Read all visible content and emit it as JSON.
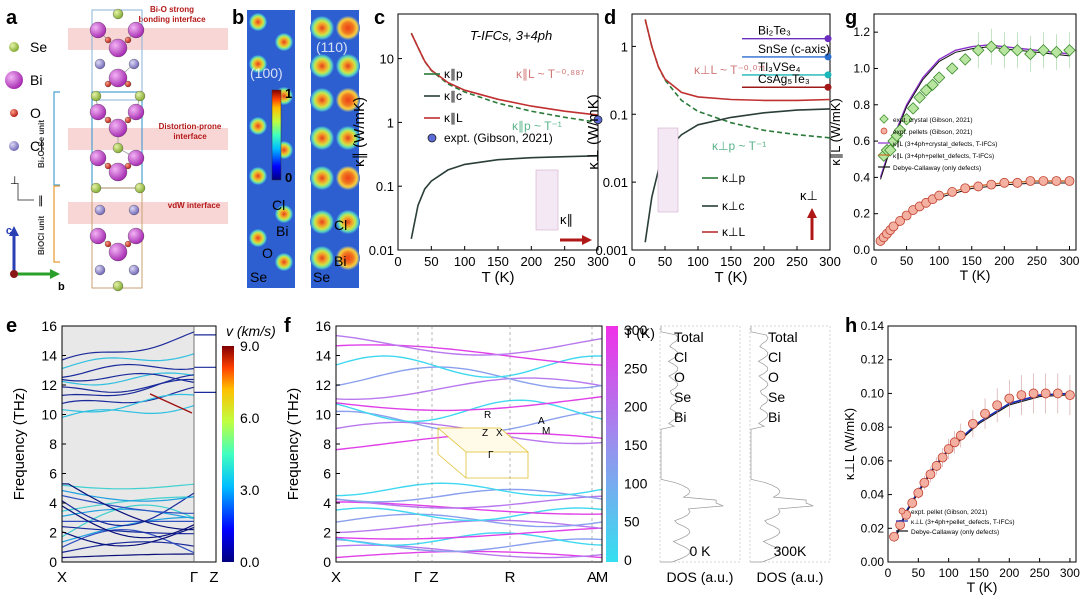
{
  "panel_letters": [
    "a",
    "b",
    "c",
    "d",
    "g",
    "e",
    "f",
    "h"
  ],
  "panel_a": {
    "legend": [
      "Se",
      "Bi",
      "O",
      "Cl"
    ],
    "annotations": [
      "Bi-O strong bonding interface",
      "Distortion-prone interface",
      "vdW interface"
    ],
    "units": [
      "Bi₂O₂Se unit",
      "BiOCl unit"
    ],
    "axes": {
      "perp": "⊥",
      "par": "∥",
      "c": "c",
      "b": "b"
    },
    "colors": {
      "Se": "#a5c94a",
      "Bi": "#c048c8",
      "O": "#d23a2a",
      "Cl": "#8f86c8"
    }
  },
  "panel_b": {
    "map_labels": [
      "(100)",
      "(110)"
    ],
    "colorbar": {
      "max": "1",
      "min": "0"
    },
    "site_labels_left": [
      "Cl",
      "Bi",
      "O",
      "Se"
    ],
    "site_labels_right": [
      "Cl",
      "Bi",
      "Se"
    ]
  },
  "chart_data": [
    {
      "panel": "c",
      "type": "line",
      "scale": "log-y",
      "title": "T-IFCs, 3+4ph",
      "xlabel": "T (K)",
      "ylabel": "κ∥ (W/mK)",
      "xlim": [
        0,
        300
      ],
      "ylim": [
        0.01,
        50
      ],
      "xticks": [
        "0",
        "50",
        "100",
        "150",
        "200",
        "250",
        "300"
      ],
      "yticks": [
        "0.01",
        "0.1",
        "1",
        "10"
      ],
      "legend": [
        "κ∥p",
        "κ∥c",
        "κ∥L",
        "expt. (Gibson, 2021)"
      ],
      "annotations": [
        "κ∥L ~ T⁻⁰·⁸⁸⁷",
        "κ∥p ~ T⁻¹",
        "κ∥"
      ],
      "series": [
        {
          "name": "κ∥p",
          "x": [
            20,
            30,
            40,
            50,
            75,
            100,
            150,
            200,
            250,
            300
          ],
          "y": [
            25,
            15,
            9,
            6.5,
            4,
            3.0,
            2.0,
            1.5,
            1.2,
            1.0
          ]
        },
        {
          "name": "κ∥c",
          "x": [
            20,
            30,
            40,
            50,
            75,
            100,
            150,
            200,
            250,
            300
          ],
          "y": [
            0.015,
            0.05,
            0.09,
            0.12,
            0.18,
            0.22,
            0.26,
            0.28,
            0.29,
            0.3
          ]
        },
        {
          "name": "κ∥L",
          "x": [
            20,
            30,
            40,
            50,
            75,
            100,
            150,
            200,
            250,
            300
          ],
          "y": [
            25,
            15,
            9.1,
            6.6,
            4.2,
            3.2,
            2.3,
            1.8,
            1.5,
            1.3
          ]
        }
      ],
      "expt": {
        "x": 300,
        "y": 1.1
      }
    },
    {
      "panel": "d",
      "type": "line",
      "scale": "log-y",
      "xlabel": "T (K)",
      "ylabel": "κ⊥ (W/mK)",
      "xlim": [
        0,
        300
      ],
      "ylim": [
        0.001,
        3
      ],
      "xticks": [
        "0",
        "50",
        "100",
        "150",
        "200",
        "250",
        "300"
      ],
      "yticks": [
        "0.001",
        "0.01",
        "0.1",
        "1"
      ],
      "legend": [
        "κ⊥p",
        "κ⊥c",
        "κ⊥L"
      ],
      "annotations": [
        "κ⊥L ~ T⁻⁰·⁰⁷¹",
        "κ⊥p ~ T⁻¹",
        "κ⊥"
      ],
      "references": [
        {
          "label": "Bi₂Te₃",
          "y": 1.3,
          "color": "#6a2dbf"
        },
        {
          "label": "SnSe (c-axis)",
          "y": 0.7,
          "color": "#2a6dcf"
        },
        {
          "label": "Tl₃VSe₄",
          "y": 0.38,
          "color": "#18b8b8"
        },
        {
          "label": "CsAg₅Te₃",
          "y": 0.25,
          "color": "#a01818"
        }
      ],
      "series": [
        {
          "name": "κ⊥p",
          "x": [
            20,
            30,
            40,
            50,
            75,
            100,
            150,
            200,
            250,
            300
          ],
          "y": [
            2.5,
            1.0,
            0.5,
            0.32,
            0.16,
            0.11,
            0.075,
            0.058,
            0.05,
            0.045
          ]
        },
        {
          "name": "κ⊥c",
          "x": [
            20,
            30,
            40,
            50,
            75,
            100,
            150,
            200,
            250,
            300
          ],
          "y": [
            0.0013,
            0.006,
            0.015,
            0.028,
            0.05,
            0.07,
            0.09,
            0.105,
            0.115,
            0.12
          ]
        },
        {
          "name": "κ⊥L",
          "x": [
            20,
            30,
            40,
            50,
            75,
            100,
            150,
            200,
            250,
            300
          ],
          "y": [
            2.5,
            1.0,
            0.5,
            0.33,
            0.21,
            0.18,
            0.165,
            0.16,
            0.16,
            0.165
          ]
        }
      ]
    },
    {
      "panel": "g",
      "type": "scatter",
      "xlabel": "T (K)",
      "ylabel": "κ∥L (W/mK)",
      "xlim": [
        0,
        310
      ],
      "ylim": [
        0,
        1.3
      ],
      "xticks": [
        "0",
        "50",
        "100",
        "150",
        "200",
        "250",
        "300"
      ],
      "yticks": [
        "0.0",
        "0.2",
        "0.4",
        "0.6",
        "0.8",
        "1.0",
        "1.2"
      ],
      "legend": [
        "expt. crystal (Gibson, 2021)",
        "expt. pellets (Gibson, 2021)",
        "κ∥L (3+4ph+crystal_defects, T-IFCs)",
        "κ∥L (3+4ph+pellet_defects, T-IFCs)",
        "Debye-Callaway (only defects)"
      ],
      "series": [
        {
          "name": "expt. crystal (Gibson, 2021)",
          "x": [
            15,
            20,
            25,
            30,
            35,
            40,
            50,
            60,
            70,
            80,
            90,
            100,
            120,
            140,
            160,
            180,
            200,
            220,
            240,
            260,
            280,
            300
          ],
          "y": [
            0.52,
            0.55,
            0.55,
            0.6,
            0.63,
            0.66,
            0.72,
            0.78,
            0.84,
            0.88,
            0.91,
            0.95,
            1.0,
            1.05,
            1.1,
            1.12,
            1.1,
            1.1,
            1.08,
            1.1,
            1.09,
            1.1
          ]
        },
        {
          "name": "expt. pellets (Gibson, 2021)",
          "x": [
            10,
            15,
            20,
            25,
            30,
            40,
            50,
            60,
            70,
            80,
            90,
            100,
            120,
            140,
            160,
            180,
            200,
            220,
            240,
            260,
            280,
            300
          ],
          "y": [
            0.05,
            0.07,
            0.09,
            0.11,
            0.13,
            0.16,
            0.19,
            0.22,
            0.24,
            0.26,
            0.28,
            0.3,
            0.32,
            0.34,
            0.35,
            0.36,
            0.37,
            0.37,
            0.38,
            0.38,
            0.38,
            0.38
          ]
        }
      ],
      "curves": [
        {
          "name": "crystal",
          "x": [
            10,
            30,
            50,
            75,
            100,
            125,
            150,
            175,
            200,
            250,
            300
          ],
          "y": [
            0.4,
            0.62,
            0.8,
            0.95,
            1.05,
            1.1,
            1.12,
            1.13,
            1.12,
            1.1,
            1.08
          ]
        },
        {
          "name": "pellet",
          "x": [
            10,
            30,
            50,
            75,
            100,
            150,
            200,
            250,
            300
          ],
          "y": [
            0.04,
            0.12,
            0.19,
            0.26,
            0.3,
            0.35,
            0.37,
            0.38,
            0.38
          ]
        }
      ]
    },
    {
      "panel": "h",
      "type": "scatter",
      "xlabel": "T (K)",
      "ylabel": "κ⊥L (W/mK)",
      "xlim": [
        0,
        310
      ],
      "ylim": [
        0,
        0.14
      ],
      "xticks": [
        "0",
        "50",
        "100",
        "150",
        "200",
        "250",
        "300"
      ],
      "yticks": [
        "0.00",
        "0.02",
        "0.04",
        "0.06",
        "0.08",
        "0.10",
        "0.12",
        "0.14"
      ],
      "legend": [
        "expt. pellet (Gibson, 2021)",
        "κ⊥L (3+4ph+pellet_defects, T-IFCs)",
        "Debye-Callaway (only defects)"
      ],
      "series": [
        {
          "name": "expt. pellet (Gibson, 2021)",
          "x": [
            10,
            20,
            30,
            40,
            50,
            60,
            70,
            80,
            90,
            100,
            110,
            120,
            140,
            160,
            180,
            200,
            220,
            240,
            260,
            280,
            300
          ],
          "y": [
            0.015,
            0.022,
            0.028,
            0.035,
            0.041,
            0.047,
            0.052,
            0.057,
            0.062,
            0.067,
            0.071,
            0.075,
            0.082,
            0.088,
            0.093,
            0.097,
            0.099,
            0.1,
            0.1,
            0.1,
            0.099
          ]
        }
      ],
      "curves": [
        {
          "name": "model",
          "x": [
            10,
            30,
            50,
            75,
            100,
            150,
            200,
            250,
            300
          ],
          "y": [
            0.013,
            0.03,
            0.042,
            0.056,
            0.067,
            0.083,
            0.094,
            0.099,
            0.1
          ]
        }
      ]
    },
    {
      "panel": "e",
      "type": "line",
      "ylabel": "Frequency (THz)",
      "ylim": [
        0,
        16
      ],
      "yticks": [
        "0",
        "2",
        "4",
        "6",
        "8",
        "10",
        "12",
        "14",
        "16"
      ],
      "xticks": [
        "X",
        "Γ",
        "Z"
      ],
      "colorbar": {
        "label": "v (km/s)",
        "ticks": [
          "0.0",
          "3.0",
          "6.0",
          "9.0"
        ]
      }
    },
    {
      "panel": "f",
      "type": "line",
      "ylabel": "Frequency (THz)",
      "ylim": [
        0,
        16
      ],
      "yticks": [
        "0",
        "2",
        "4",
        "6",
        "8",
        "10",
        "12",
        "14",
        "16"
      ],
      "xticks": [
        "X",
        "Γ",
        "Z",
        "R",
        "A",
        "M"
      ],
      "bz_labels": [
        "Z",
        "X",
        "A",
        "R",
        "M",
        "Γ"
      ],
      "colorbar": {
        "label": "T (K)",
        "ticks": [
          "0",
          "50",
          "100",
          "150",
          "200",
          "250",
          "300"
        ]
      },
      "dos_panels": [
        {
          "label": "0 K",
          "xlabel": "DOS (a.u.)",
          "legend": [
            "Total",
            "Cl",
            "O",
            "Se",
            "Bi"
          ]
        },
        {
          "label": "300K",
          "xlabel": "DOS (a.u.)",
          "legend": [
            "Total",
            "Cl",
            "O",
            "Se",
            "Bi"
          ]
        }
      ]
    }
  ]
}
